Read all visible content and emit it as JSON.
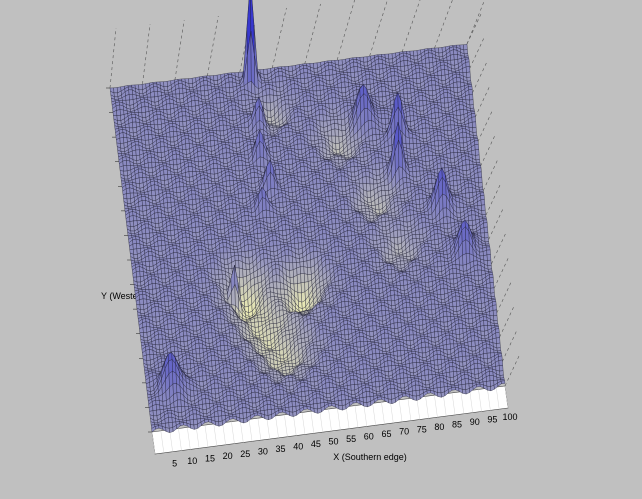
{
  "chart_data": {
    "type": "surface",
    "title": "",
    "xlabel": "X (Southern edge)",
    "ylabel": "Y (Western edge)",
    "zlabel": "",
    "x_ticks": [
      5,
      10,
      15,
      20,
      25,
      30,
      35,
      40,
      45,
      50,
      55,
      60,
      65,
      70,
      75,
      80,
      85,
      90,
      95,
      100
    ],
    "xlim": [
      0,
      100
    ],
    "ylim": [
      0,
      100
    ],
    "grid": true,
    "colormap": {
      "low": "#e8e8b4",
      "mid": "#8c8cc0",
      "high": "#2828d0",
      "edge": "#1e1e32",
      "baseline": "#ffffff"
    },
    "surface": {
      "grid_resolution": 100,
      "base_level": 0.5,
      "peaks": [
        {
          "x": 39,
          "y": 97,
          "height": 1.0,
          "width": 0.9
        },
        {
          "x": 69,
          "y": 82,
          "height": 0.35,
          "width": 2.0
        },
        {
          "x": 78,
          "y": 76,
          "height": 0.45,
          "width": 1.4
        },
        {
          "x": 77,
          "y": 66,
          "height": 0.5,
          "width": 1.2
        },
        {
          "x": 88,
          "y": 54,
          "height": 0.4,
          "width": 1.6
        },
        {
          "x": 93,
          "y": 40,
          "height": 0.3,
          "width": 2.0
        },
        {
          "x": 40,
          "y": 85,
          "height": 0.3,
          "width": 1.2
        },
        {
          "x": 39,
          "y": 75,
          "height": 0.25,
          "width": 1.2
        },
        {
          "x": 41,
          "y": 66,
          "height": 0.25,
          "width": 1.2
        },
        {
          "x": 38,
          "y": 60,
          "height": 0.22,
          "width": 1.2
        },
        {
          "x": 28,
          "y": 40,
          "height": 0.4,
          "width": 1.0
        },
        {
          "x": 7,
          "y": 12,
          "height": 0.35,
          "width": 2.2
        }
      ],
      "valleys": [
        {
          "x": 31,
          "y": 40,
          "depth": 0.3,
          "width": 4.0
        },
        {
          "x": 47,
          "y": 38,
          "depth": 0.3,
          "width": 4.0
        },
        {
          "x": 35,
          "y": 30,
          "depth": 0.22,
          "width": 5.0
        },
        {
          "x": 40,
          "y": 20,
          "depth": 0.2,
          "width": 5.0
        },
        {
          "x": 62,
          "y": 78,
          "depth": 0.15,
          "width": 4.0
        },
        {
          "x": 44,
          "y": 88,
          "depth": 0.15,
          "width": 3.0
        },
        {
          "x": 70,
          "y": 60,
          "depth": 0.15,
          "width": 4.0
        },
        {
          "x": 75,
          "y": 45,
          "depth": 0.12,
          "width": 4.0
        }
      ]
    }
  }
}
